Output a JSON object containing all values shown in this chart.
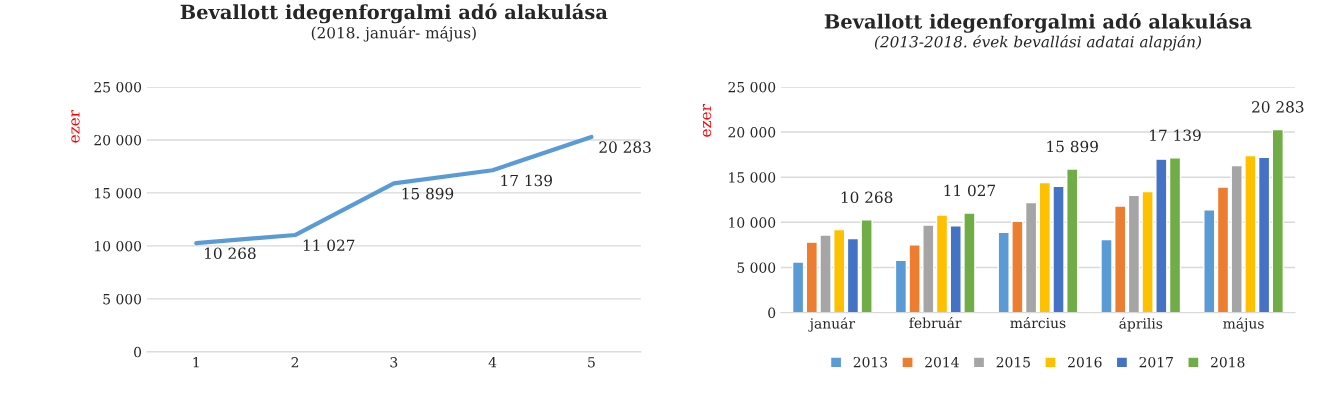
{
  "chart_data": [
    {
      "type": "line",
      "title": "Bevallott idegenforgalmi adó alakulása",
      "subtitle": "(2018. január- május)",
      "ylabel": "ezer",
      "categories": [
        "1",
        "2",
        "3",
        "4",
        "5"
      ],
      "series": [
        {
          "color": "#5b9bd5",
          "values": [
            10268,
            11027,
            15899,
            17139,
            20283
          ],
          "value_labels": [
            "10 268",
            "11 027",
            "15 899",
            "17 139",
            "20 283"
          ]
        }
      ],
      "ylim": [
        0,
        25000
      ],
      "yticks": [
        {
          "value": 0,
          "label": "0"
        },
        {
          "value": 5000,
          "label": "5 000"
        },
        {
          "value": 10000,
          "label": "10 000"
        },
        {
          "value": 15000,
          "label": "15 000"
        },
        {
          "value": 20000,
          "label": "20 000"
        },
        {
          "value": 25000,
          "label": "25 000"
        }
      ],
      "grid": "y",
      "marker": "none",
      "line_style": "solid",
      "legend": false
    },
    {
      "type": "bar",
      "title": "Bevallott idegenforgalmi adó alakulása",
      "subtitle": "(2013-2018. évek bevallási adatai alapján)",
      "ylabel": "ezer",
      "categories": [
        "január",
        "február",
        "március",
        "április",
        "május"
      ],
      "series": [
        {
          "name": "2013",
          "color": "#5b9bd5",
          "values": [
            5600,
            5800,
            8900,
            8100,
            11400
          ]
        },
        {
          "name": "2014",
          "color": "#ed7d31",
          "values": [
            7800,
            7500,
            10100,
            11800,
            13900
          ]
        },
        {
          "name": "2015",
          "color": "#a5a5a5",
          "values": [
            8600,
            9700,
            12200,
            13000,
            16300
          ]
        },
        {
          "name": "2016",
          "color": "#ffc000",
          "values": [
            9200,
            10800,
            14400,
            13400,
            17400
          ]
        },
        {
          "name": "2017",
          "color": "#4472c4",
          "values": [
            8200,
            9600,
            14000,
            17000,
            17200
          ]
        },
        {
          "name": "2018",
          "color": "#70ad47",
          "values": [
            10268,
            11027,
            15899,
            17139,
            20283
          ],
          "value_labels": [
            "10 268",
            "11 027",
            "15 899",
            "17 139",
            "20 283"
          ]
        }
      ],
      "ylim": [
        0,
        25000
      ],
      "yticks": [
        {
          "value": 0,
          "label": "0"
        },
        {
          "value": 5000,
          "label": "5 000"
        },
        {
          "value": 10000,
          "label": "10 000"
        },
        {
          "value": 15000,
          "label": "15 000"
        },
        {
          "value": 20000,
          "label": "20 000"
        },
        {
          "value": 25000,
          "label": "25 000"
        }
      ],
      "grid": "y",
      "legend": "bottom"
    }
  ]
}
